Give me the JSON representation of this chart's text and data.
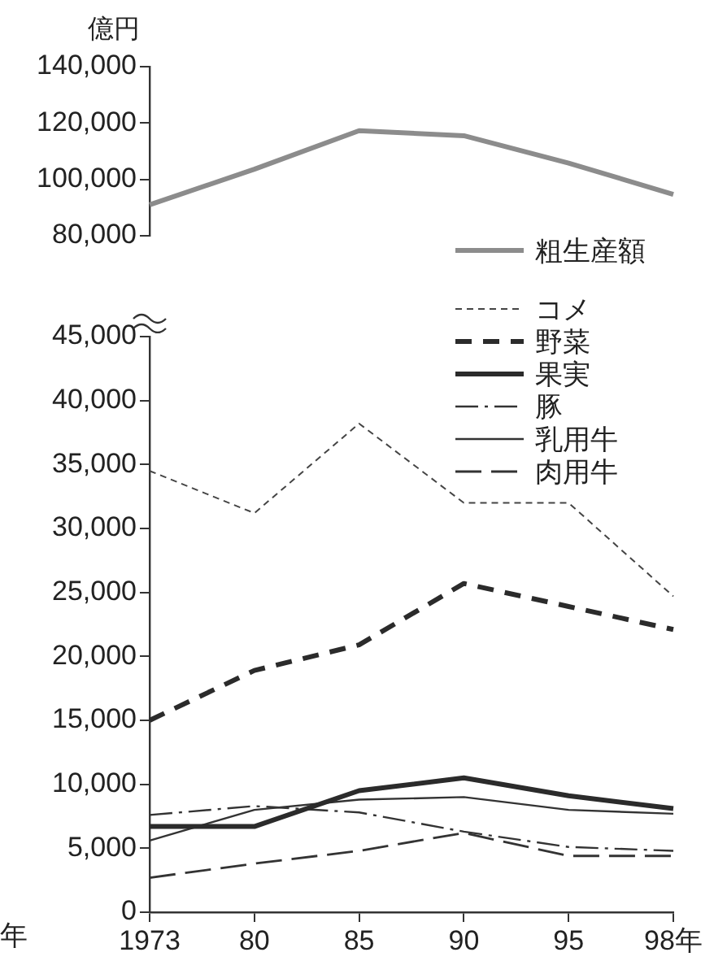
{
  "chart_data": [
    {
      "type": "line",
      "ylabel": "億円",
      "ylim": [
        80000,
        140000
      ],
      "yticks": [
        {
          "value": 80000,
          "label": "80,000"
        },
        {
          "value": 100000,
          "label": "100,000"
        },
        {
          "value": 120000,
          "label": "120,000"
        },
        {
          "value": 140000,
          "label": "140,000"
        }
      ],
      "tick_labels": "y",
      "grid": false,
      "legend": "bottom right",
      "marker": "none",
      "series": [
        {
          "name": "粗生産額",
          "color": "#8c8c8c",
          "line_style": "solid",
          "values": [
            91000,
            103600,
            117300,
            115500,
            105800,
            94700
          ]
        }
      ]
    },
    {
      "type": "line",
      "categories": [
        "1973",
        "80",
        "85",
        "90",
        "95",
        "98年"
      ],
      "ylim": [
        0,
        45000
      ],
      "yticks": [
        0,
        {
          "value": 5000,
          "label": "5,000"
        },
        {
          "value": 10000,
          "label": "10,000"
        },
        {
          "value": 15000,
          "label": "15,000"
        },
        {
          "value": 20000,
          "label": "20,000"
        },
        {
          "value": 25000,
          "label": "25,000"
        },
        {
          "value": 30000,
          "label": "30,000"
        },
        {
          "value": 35000,
          "label": "35,000"
        },
        {
          "value": 40000,
          "label": "40,000"
        },
        {
          "value": 45000,
          "label": "45,000"
        }
      ],
      "grid": false,
      "legend": "top right",
      "marker": "none",
      "annotations": [
        "年"
      ],
      "series": [
        {
          "name": "コメ",
          "color": "#444444",
          "line_style": "dashed",
          "values": [
            34500,
            31200,
            38200,
            32000,
            32000,
            24700
          ]
        },
        {
          "name": "野菜",
          "color": "#2b2b2b",
          "line_style": "dashed",
          "values": [
            15000,
            18900,
            20900,
            25700,
            23900,
            22100
          ]
        },
        {
          "name": "果実",
          "color": "#2b2b2b",
          "line_style": "solid",
          "values": [
            6700,
            6700,
            9500,
            10500,
            9100,
            8100
          ]
        },
        {
          "name": "豚",
          "color": "#333333",
          "line_style": "dashdot",
          "values": [
            7600,
            8300,
            7800,
            6300,
            5100,
            4800
          ]
        },
        {
          "name": "乳用牛",
          "color": "#333333",
          "line_style": "solid",
          "values": [
            5600,
            8000,
            8800,
            9000,
            8000,
            7700
          ]
        },
        {
          "name": "肉用牛",
          "color": "#333333",
          "line_style": "longdash",
          "values": [
            2700,
            3800,
            4800,
            6200,
            4400,
            4400
          ]
        }
      ]
    }
  ]
}
